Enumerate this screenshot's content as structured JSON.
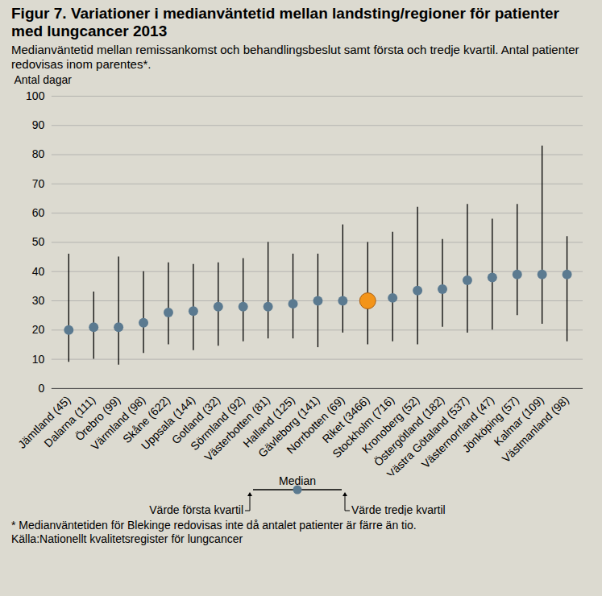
{
  "chart_data": {
    "type": "dot_range",
    "title": "Figur 7. Variationer i medianväntetid mellan landsting/regioner för patienter med lungcancer 2013",
    "subtitle": "Medianväntetid mellan remissankomst och behandlingsbeslut  samt första och tredje kvartil. Antal patienter redovisas inom parentes*.",
    "y_label": "Antal dagar",
    "categories": [
      "Jämtland (45)",
      "Dalarna (111)",
      "Örebro (99)",
      "Värmland (98)",
      "Skåne (622)",
      "Uppsala (144)",
      "Gotland (32)",
      "Sörmland (92)",
      "Västerbotten (81)",
      "Halland (125)",
      "Gävleborg (141)",
      "Norrbotten (69)",
      "Riket (3466)",
      "Stockholm (716)",
      "Kronoberg (52)",
      "Östergötland (182)",
      "Västra Götaland (537)",
      "Västernorrland (47)",
      "Jönköping (57)",
      "Kalmar (109)",
      "Västmanland (98)"
    ],
    "values": [
      20,
      21,
      21,
      22.5,
      26,
      26.5,
      28,
      28,
      28,
      29,
      30,
      30,
      30,
      31,
      33.5,
      34,
      37,
      38,
      39,
      39,
      39
    ],
    "q1": [
      9,
      10,
      8,
      12,
      15,
      13,
      14.5,
      16,
      17,
      17,
      14,
      19,
      15,
      16,
      15,
      21,
      19,
      20,
      25,
      22,
      16
    ],
    "q3": [
      46,
      33,
      45,
      40,
      43,
      42.5,
      43,
      44.5,
      50,
      46,
      46,
      56,
      50,
      53.5,
      62,
      51,
      63,
      58,
      63,
      83,
      52
    ],
    "color": "#5b7a90",
    "colors": [
      "#5b7a90",
      "#5b7a90",
      "#5b7a90",
      "#5b7a90",
      "#5b7a90",
      "#5b7a90",
      "#5b7a90",
      "#5b7a90",
      "#5b7a90",
      "#5b7a90",
      "#5b7a90",
      "#5b7a90",
      "#f39419",
      "#5b7a90",
      "#5b7a90",
      "#5b7a90",
      "#5b7a90",
      "#5b7a90",
      "#5b7a90",
      "#5b7a90",
      "#5b7a90"
    ],
    "ylim": [
      0,
      100
    ],
    "yticks": [
      0,
      10,
      20,
      30,
      40,
      50,
      60,
      70,
      80,
      90,
      100
    ],
    "grid": true,
    "key_labels": {
      "median": "Median",
      "q1": "Värde första kvartil",
      "q3": "Värde tredje kvartil"
    },
    "notes": [
      "* Medianväntetiden för Blekinge redovisas inte då antalet patienter är färre än tio.",
      "Källa:Nationellt kvalitetsregister för lungcancer"
    ]
  }
}
